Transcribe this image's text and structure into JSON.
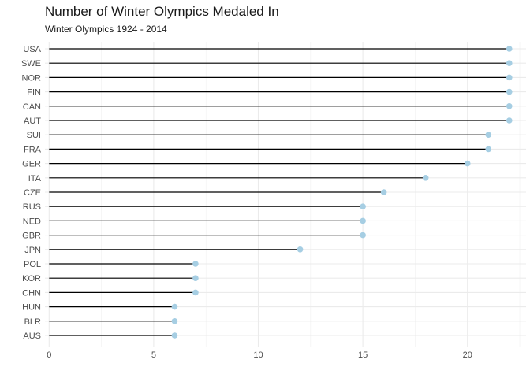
{
  "chart_data": {
    "type": "lollipop",
    "title": "Number of Winter Olympics Medaled In",
    "subtitle": "Winter Olympics 1924 - 2014",
    "xlabel": "",
    "ylabel": "",
    "xlim": [
      -0.2,
      22.8
    ],
    "x_ticks": [
      0,
      5,
      10,
      15,
      20
    ],
    "grid": true,
    "legend": "none",
    "segment_color": "#000000",
    "point_color": "#a6cee3",
    "categories": [
      "USA",
      "SWE",
      "NOR",
      "FIN",
      "CAN",
      "AUT",
      "SUI",
      "FRA",
      "GER",
      "ITA",
      "CZE",
      "RUS",
      "NED",
      "GBR",
      "JPN",
      "POL",
      "KOR",
      "CHN",
      "HUN",
      "BLR",
      "AUS"
    ],
    "values": [
      22,
      22,
      22,
      22,
      22,
      22,
      21,
      21,
      20,
      18,
      16,
      15,
      15,
      15,
      12,
      7,
      7,
      7,
      6,
      6,
      6
    ]
  }
}
